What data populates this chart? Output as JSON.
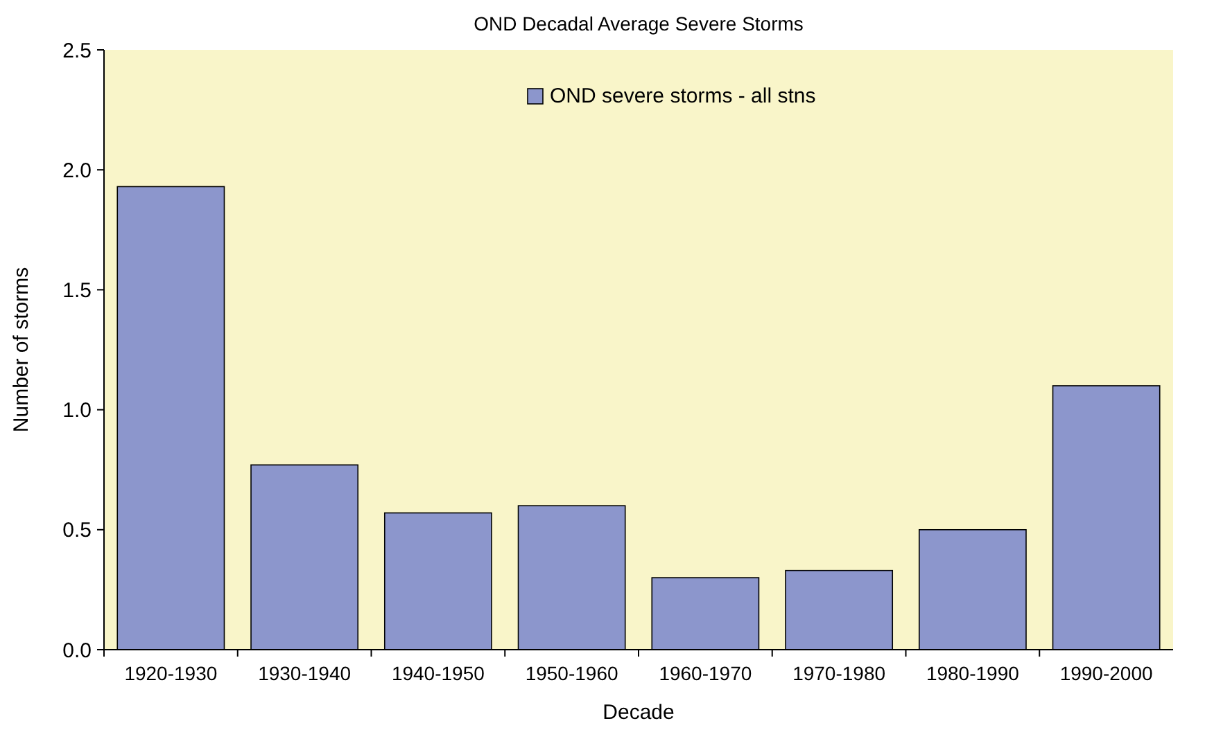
{
  "chart_data": {
    "type": "bar",
    "title": "OND Decadal Average Severe Storms",
    "xlabel": "Decade",
    "ylabel": "Number of storms",
    "categories": [
      "1920-1930",
      "1930-1940",
      "1940-1950",
      "1950-1960",
      "1960-1970",
      "1970-1980",
      "1980-1990",
      "1990-2000"
    ],
    "series": [
      {
        "name": "OND severe storms - all stns",
        "color": "#8c96cc",
        "values": [
          1.93,
          0.77,
          0.57,
          0.6,
          0.3,
          0.33,
          0.5,
          1.1
        ]
      }
    ],
    "ylim": [
      0,
      2.5
    ],
    "yticks": [
      {
        "value": 0,
        "label": "0.0"
      },
      {
        "value": 0.5,
        "label": "0.5"
      },
      {
        "value": 1,
        "label": "1.0"
      },
      {
        "value": 1.5,
        "label": "1.5"
      },
      {
        "value": 2,
        "label": "2.0"
      },
      {
        "value": 2.5,
        "label": "2.5"
      }
    ],
    "grid": false,
    "legend": "top"
  }
}
